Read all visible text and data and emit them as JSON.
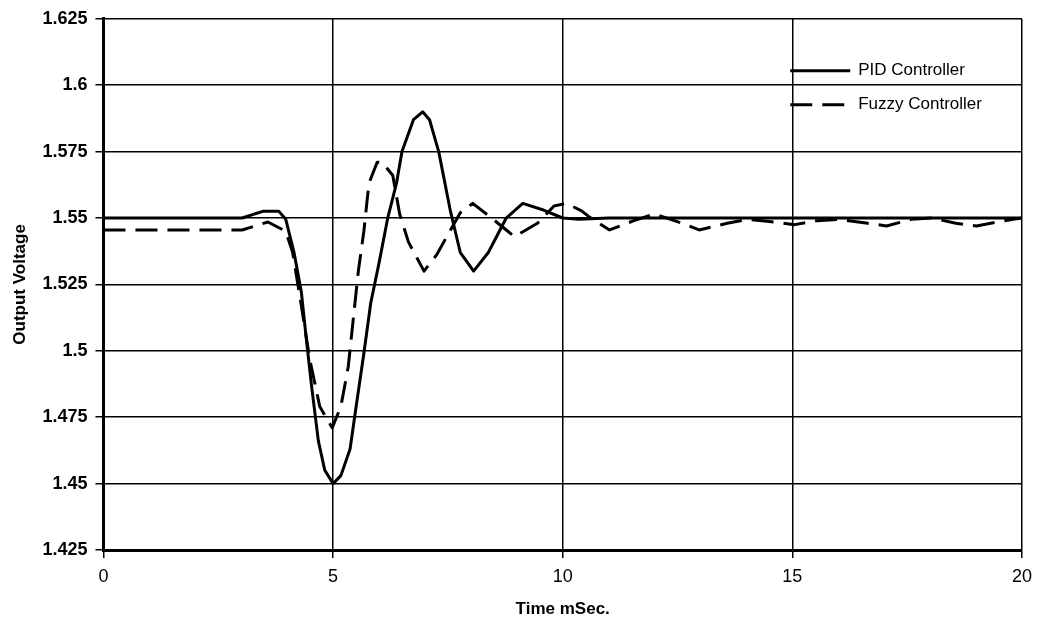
{
  "chart_data": {
    "type": "line",
    "xlabel": "Time mSec.",
    "ylabel": "Output Voltage",
    "xlim": [
      0,
      20
    ],
    "xticks": [
      0,
      5,
      10,
      15,
      20
    ],
    "ylim": [
      1.425,
      1.625
    ],
    "yticks": [
      1.425,
      1.45,
      1.475,
      1.5,
      1.525,
      1.55,
      1.575,
      1.6,
      1.625
    ],
    "grid": true,
    "legend": "top right",
    "marker": "none",
    "series": [
      {
        "name": "PID Controller",
        "color": "#000000",
        "line_style": "solid",
        "x": [
          0,
          3.02,
          3.47,
          3.82,
          3.97,
          4.15,
          4.31,
          4.42,
          4.53,
          4.68,
          4.82,
          5,
          5.17,
          5.37,
          5.51,
          5.67,
          5.82,
          6,
          6.19,
          6.38,
          6.5,
          6.75,
          6.95,
          7.1,
          7.3,
          7.55,
          7.77,
          8.06,
          8.38,
          8.77,
          9.13,
          9.58,
          10,
          10.35,
          11,
          20
        ],
        "values": [
          1.55,
          1.55,
          1.5525,
          1.5525,
          1.5495,
          1.537,
          1.522,
          1.504,
          1.487,
          1.466,
          1.455,
          1.45,
          1.453,
          1.463,
          1.48,
          1.499,
          1.518,
          1.533,
          1.55,
          1.563,
          1.575,
          1.587,
          1.59,
          1.587,
          1.575,
          1.553,
          1.537,
          1.53,
          1.537,
          1.55,
          1.5555,
          1.553,
          1.55,
          1.5495,
          1.55,
          1.55
        ]
      },
      {
        "name": "Fuzzy Controller",
        "color": "#000000",
        "line_style": "dashed",
        "x": [
          0,
          3.02,
          3.58,
          3.97,
          4.12,
          4.3,
          4.49,
          4.71,
          4.98,
          5.17,
          5.33,
          5.44,
          5.55,
          5.67,
          5.78,
          5.96,
          6.07,
          6.3,
          6.45,
          6.64,
          6.98,
          7.25,
          7.54,
          7.77,
          8.04,
          8.45,
          8.95,
          9.45,
          9.81,
          10.08,
          10.41,
          10.57,
          11.02,
          11.55,
          12,
          12.6,
          12.97,
          13.58,
          14.03,
          14.6,
          15.05,
          15.54,
          16,
          16.64,
          17.05,
          17.59,
          18.03,
          18.56,
          19.01,
          19.62,
          20
        ],
        "values": [
          1.5455,
          1.5455,
          1.5485,
          1.545,
          1.537,
          1.518,
          1.497,
          1.479,
          1.471,
          1.479,
          1.494,
          1.512,
          1.53,
          1.545,
          1.563,
          1.571,
          1.571,
          1.566,
          1.5515,
          1.541,
          1.53,
          1.536,
          1.545,
          1.552,
          1.5555,
          1.55,
          1.543,
          1.548,
          1.5545,
          1.5555,
          1.5527,
          1.5505,
          1.5455,
          1.549,
          1.5515,
          1.548,
          1.5455,
          1.548,
          1.5495,
          1.5485,
          1.5475,
          1.549,
          1.5495,
          1.548,
          1.547,
          1.5495,
          1.55,
          1.548,
          1.547,
          1.549,
          1.55
        ]
      }
    ]
  }
}
